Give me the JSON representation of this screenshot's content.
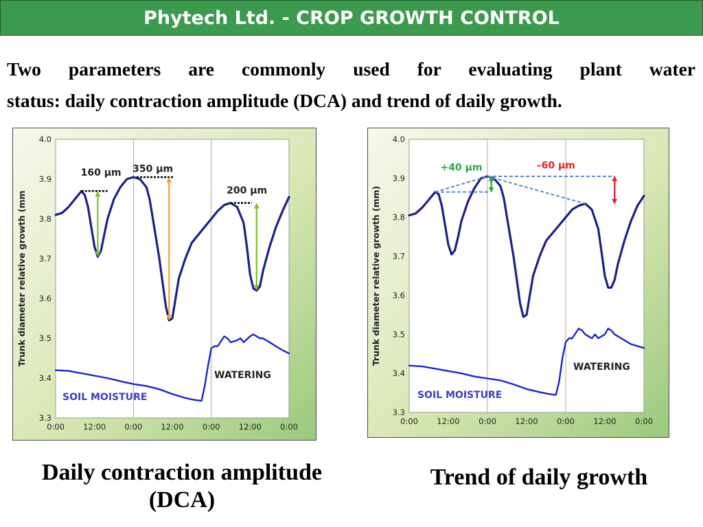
{
  "header": {
    "title": "Phytech Ltd. - CROP GROWTH CONTROL"
  },
  "intro": {
    "line1": "Two parameters are commonly used for evaluating plant water",
    "line2": "status: daily contraction amplitude (DCA) and trend of daily growth."
  },
  "colors": {
    "header_bg": "#3c9a4e",
    "trunk_line": "#1b1f8a",
    "soil_line": "#1a22d8",
    "arrow_green": "#7cc21d",
    "arrow_orange": "#f5a033",
    "trend_green": "#27a844",
    "trend_red": "#e02626",
    "dashed_blue": "#5b86c9"
  },
  "chart_data": [
    {
      "type": "line",
      "ylabel": "Trunk diameter relative growth (mm",
      "ylim": [
        3.3,
        4.0
      ],
      "yticks": [
        "4.0",
        "3.9",
        "3.8",
        "3.7",
        "3.6",
        "3.5",
        "3.4",
        "3.3"
      ],
      "xticks": [
        "0:00",
        "12:00",
        "0:00",
        "12:00",
        "0:00",
        "12:00",
        "0:00"
      ],
      "xlim": [
        0,
        72
      ],
      "grid": "vertical at 0:00",
      "series": [
        {
          "x": [
            0,
            2,
            4,
            6,
            8,
            9,
            10,
            11,
            12,
            13,
            14,
            15,
            16,
            18,
            20,
            22,
            24,
            26,
            28,
            29,
            30,
            32,
            33,
            34,
            35,
            36,
            37,
            38,
            40,
            42,
            44,
            46,
            48,
            50,
            52,
            54,
            56,
            58,
            59,
            60,
            61,
            62,
            63,
            64,
            66,
            68,
            70,
            72
          ],
          "values": [
            3.81,
            3.815,
            3.83,
            3.85,
            3.87,
            3.86,
            3.83,
            3.78,
            3.73,
            3.705,
            3.72,
            3.76,
            3.8,
            3.85,
            3.88,
            3.9,
            3.905,
            3.9,
            3.88,
            3.85,
            3.8,
            3.7,
            3.64,
            3.58,
            3.545,
            3.55,
            3.6,
            3.65,
            3.7,
            3.74,
            3.76,
            3.78,
            3.8,
            3.82,
            3.835,
            3.84,
            3.83,
            3.79,
            3.73,
            3.66,
            3.625,
            3.62,
            3.63,
            3.67,
            3.73,
            3.78,
            3.82,
            3.855
          ]
        },
        {
          "x": [
            0,
            4,
            8,
            12,
            16,
            20,
            24,
            28,
            32,
            36,
            40,
            43,
            45,
            46,
            47,
            48,
            49,
            50,
            52,
            53,
            54,
            56,
            57,
            58,
            60,
            61,
            62,
            63,
            64,
            66,
            68,
            70,
            72
          ],
          "values": [
            3.42,
            3.418,
            3.412,
            3.406,
            3.4,
            3.392,
            3.385,
            3.38,
            3.372,
            3.36,
            3.35,
            3.345,
            3.343,
            3.38,
            3.43,
            3.475,
            3.48,
            3.48,
            3.505,
            3.5,
            3.49,
            3.495,
            3.5,
            3.49,
            3.505,
            3.51,
            3.505,
            3.5,
            3.5,
            3.49,
            3.48,
            3.47,
            3.462
          ]
        }
      ],
      "annotations": [
        {
          "label": "160 µm"
        },
        {
          "label": "350 µm"
        },
        {
          "label": "200 µm"
        }
      ],
      "tags": {
        "soil": "SOIL MOISTURE",
        "watering": "WATERING"
      }
    },
    {
      "type": "line",
      "ylabel": "Trunk diameter relative growth (mm)",
      "ylim": [
        3.3,
        4.0
      ],
      "yticks": [
        "4.0",
        "3.9",
        "3.8",
        "3.7",
        "3.6",
        "3.5",
        "3.4",
        "3.3"
      ],
      "xticks": [
        "0:00",
        "12:00",
        "0:00",
        "12:00",
        "0:00",
        "12:00",
        "0:00"
      ],
      "xlim": [
        0,
        72
      ],
      "grid": "vertical at 0:00",
      "series": [
        {
          "x": [
            0,
            2,
            4,
            6,
            8,
            9,
            10,
            11,
            12,
            13,
            14,
            15,
            16,
            18,
            20,
            22,
            24,
            26,
            28,
            29,
            30,
            32,
            33,
            34,
            35,
            36,
            37,
            38,
            40,
            42,
            44,
            46,
            48,
            50,
            52,
            54,
            56,
            58,
            59,
            60,
            61,
            62,
            63,
            64,
            66,
            68,
            70,
            72
          ],
          "values": [
            3.805,
            3.81,
            3.825,
            3.845,
            3.865,
            3.86,
            3.83,
            3.78,
            3.73,
            3.705,
            3.715,
            3.75,
            3.79,
            3.84,
            3.875,
            3.9,
            3.905,
            3.9,
            3.88,
            3.85,
            3.8,
            3.7,
            3.64,
            3.58,
            3.545,
            3.55,
            3.6,
            3.65,
            3.7,
            3.74,
            3.76,
            3.78,
            3.8,
            3.82,
            3.83,
            3.835,
            3.82,
            3.77,
            3.71,
            3.65,
            3.62,
            3.62,
            3.64,
            3.68,
            3.74,
            3.79,
            3.83,
            3.855
          ]
        },
        {
          "x": [
            0,
            4,
            8,
            12,
            16,
            20,
            24,
            28,
            32,
            36,
            40,
            43,
            45,
            46,
            47,
            48,
            49,
            50,
            52,
            53,
            54,
            56,
            57,
            58,
            60,
            61,
            62,
            63,
            64,
            66,
            68,
            70,
            72
          ],
          "values": [
            3.42,
            3.418,
            3.412,
            3.406,
            3.4,
            3.392,
            3.387,
            3.382,
            3.372,
            3.36,
            3.352,
            3.347,
            3.345,
            3.38,
            3.44,
            3.48,
            3.49,
            3.49,
            3.515,
            3.51,
            3.5,
            3.49,
            3.5,
            3.49,
            3.5,
            3.515,
            3.51,
            3.5,
            3.495,
            3.485,
            3.475,
            3.47,
            3.465
          ]
        }
      ],
      "annotations": [
        {
          "label": "+40 µm"
        },
        {
          "label": "–60 µm"
        }
      ],
      "tags": {
        "soil": "SOIL MOISTURE",
        "watering": "WATERING"
      }
    }
  ],
  "captions": {
    "left_line1": "Daily contraction amplitude",
    "left_line2": "(DCA)",
    "right": "Trend of daily growth"
  }
}
